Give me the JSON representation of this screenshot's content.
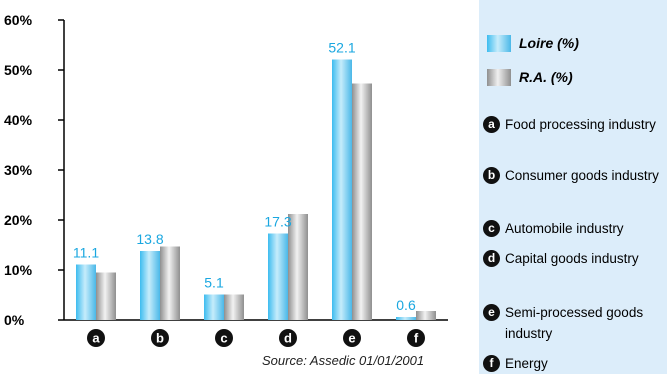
{
  "chart_data": {
    "type": "bar",
    "categories": [
      "a",
      "b",
      "c",
      "d",
      "e",
      "f"
    ],
    "series": [
      {
        "name": "Loire (%)",
        "values": [
          11.1,
          13.8,
          5.1,
          17.3,
          52.1,
          0.6
        ],
        "color": "#3dbcef"
      },
      {
        "name": "R.A. (%)",
        "values": [
          9.5,
          14.7,
          5.1,
          21.2,
          47.3,
          1.8
        ],
        "color": "#a8a8a8"
      }
    ],
    "y_ticks": [
      "0%",
      "10%",
      "20%",
      "30%",
      "40%",
      "50%",
      "60%"
    ],
    "ylim": [
      0,
      60
    ],
    "data_labels": [
      "11.1",
      "13.8",
      "5.1",
      "17.3",
      "52.1",
      "0.6"
    ],
    "source": "Source: Assedic 01/01/2001",
    "legend": {
      "series": [
        "Loire (%)",
        "R.A. (%)"
      ],
      "categories": [
        {
          "letter": "a",
          "label": "Food processing industry"
        },
        {
          "letter": "b",
          "label": "Consumer goods industry"
        },
        {
          "letter": "c",
          "label": "Automobile industry"
        },
        {
          "letter": "d",
          "label": "Capital goods industry"
        },
        {
          "letter": "e",
          "label": "Semi-processed goods industry"
        },
        {
          "letter": "f",
          "label": "Energy"
        }
      ],
      "position": "right",
      "background": "#dcedfa"
    },
    "grid": false
  }
}
